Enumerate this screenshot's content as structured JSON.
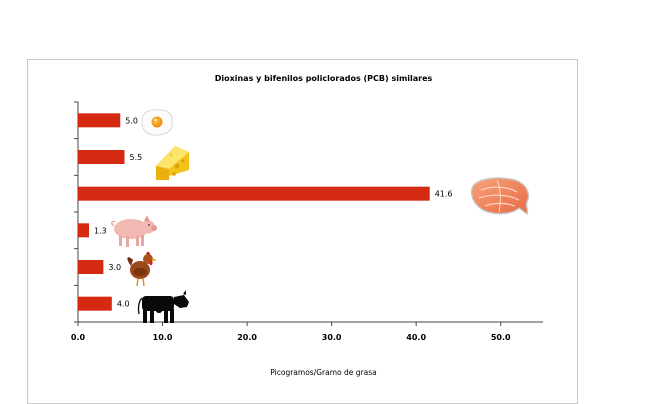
{
  "chart_data": {
    "type": "bar",
    "orientation": "horizontal",
    "title": "Dioxinas y bifenilos policlorados (PCB) similares",
    "xlabel": "Picogramos/Gramo de grasa",
    "ylabel": "",
    "categories": [
      "huevo",
      "queso",
      "salmón",
      "cerdo",
      "pollo",
      "vaca"
    ],
    "values": [
      5.0,
      5.5,
      41.6,
      1.3,
      3.0,
      4.0
    ],
    "value_labels": [
      "5.0",
      "5.5",
      "41.6",
      "1.3",
      "3.0",
      "4.0"
    ],
    "icons": [
      "fried-egg-icon",
      "cheese-icon",
      "salmon-steak-icon",
      "pig-icon",
      "chicken-icon",
      "cow-icon"
    ],
    "xlim": [
      0,
      55
    ],
    "xticks": [
      0,
      10,
      20,
      30,
      40,
      50
    ],
    "xtick_labels": [
      "0.0",
      "10.0",
      "20.0",
      "30.0",
      "40.0",
      "50.0"
    ],
    "bar_color": "#d42a12",
    "grid": false
  }
}
